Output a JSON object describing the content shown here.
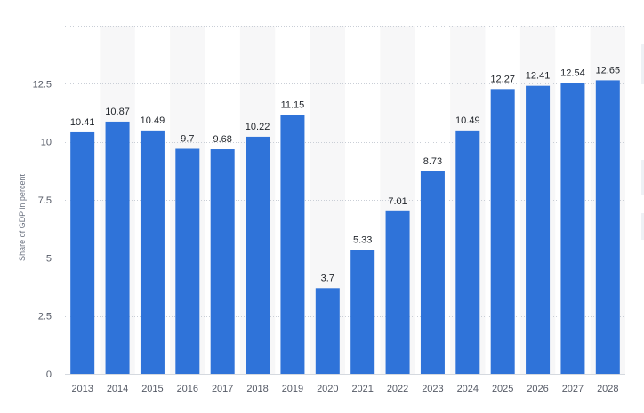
{
  "chart_data": {
    "type": "bar",
    "categories": [
      "2013",
      "2014",
      "2015",
      "2016",
      "2017",
      "2018",
      "2019",
      "2020",
      "2021",
      "2022",
      "2023",
      "2024",
      "2025",
      "2026",
      "2027",
      "2028"
    ],
    "values": [
      10.41,
      10.87,
      10.49,
      9.7,
      9.68,
      10.22,
      11.15,
      3.7,
      5.33,
      7.01,
      8.73,
      10.49,
      12.27,
      12.41,
      12.54,
      12.65
    ],
    "value_labels": [
      "10.41",
      "10.87",
      "10.49",
      "9.7",
      "9.68",
      "10.22",
      "11.15",
      "3.7",
      "5.33",
      "7.01",
      "8.73",
      "10.49",
      "12.27",
      "12.41",
      "12.54",
      "12.65"
    ],
    "ylabel": "Share of GDP in percent",
    "xlabel": "",
    "ylim": [
      0,
      15
    ],
    "yticks": [
      "0",
      "2.5",
      "5",
      "7.5",
      "10",
      "12.5"
    ],
    "grid": true,
    "bar_color": "#2f73d9",
    "band_color": "#f7f7f8",
    "grid_color": "#c9ced6"
  }
}
